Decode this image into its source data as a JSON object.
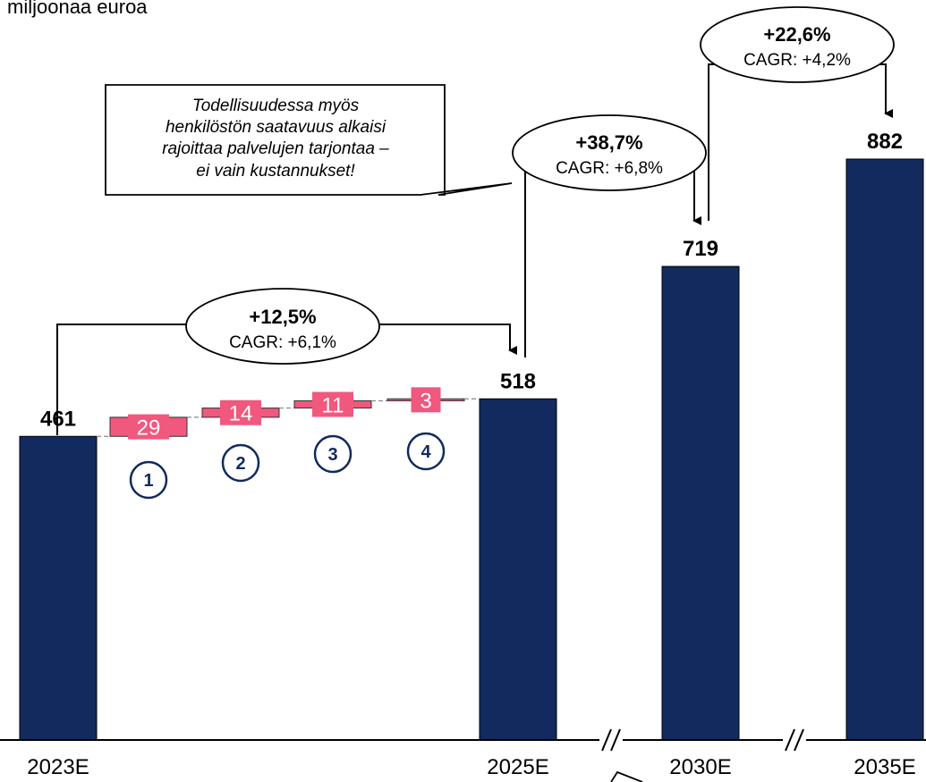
{
  "unit_label": "miljoonaa euroa",
  "callout": {
    "lines": [
      "Todellisuudessa myös",
      "henkilöstön saatavuus alkaisi",
      "rajoittaa palvelujen tarjontaa –",
      "ei vain kustannukset!"
    ]
  },
  "growth_labels": [
    {
      "pct": "+12,5%",
      "cagr": "CAGR: +6,1%"
    },
    {
      "pct": "+38,7%",
      "cagr": "CAGR: +6,8%"
    },
    {
      "pct": "+22,6%",
      "cagr": "CAGR: +4,2%"
    }
  ],
  "colors": {
    "bar": "#132a5e",
    "step": "#f0587e",
    "circle": "#132a5e",
    "text": "#000000"
  },
  "chart_data": {
    "type": "bar",
    "subtype": "waterfall",
    "categories": [
      "2023E",
      "2025E",
      "2030E",
      "2035E"
    ],
    "values": [
      461,
      518,
      719,
      882
    ],
    "value_labels": [
      "461",
      "518",
      "719",
      "882"
    ],
    "steps": [
      {
        "value": 29,
        "label": "29",
        "marker": "1"
      },
      {
        "value": 14,
        "label": "14",
        "marker": "2"
      },
      {
        "value": 11,
        "label": "11",
        "marker": "3"
      },
      {
        "value": 3,
        "label": "3",
        "marker": "4"
      }
    ],
    "axis_breaks": [
      "2025E-2030E",
      "2030E-2035E"
    ],
    "ylim": [
      0,
      882
    ],
    "grid": false,
    "legend": "none"
  }
}
